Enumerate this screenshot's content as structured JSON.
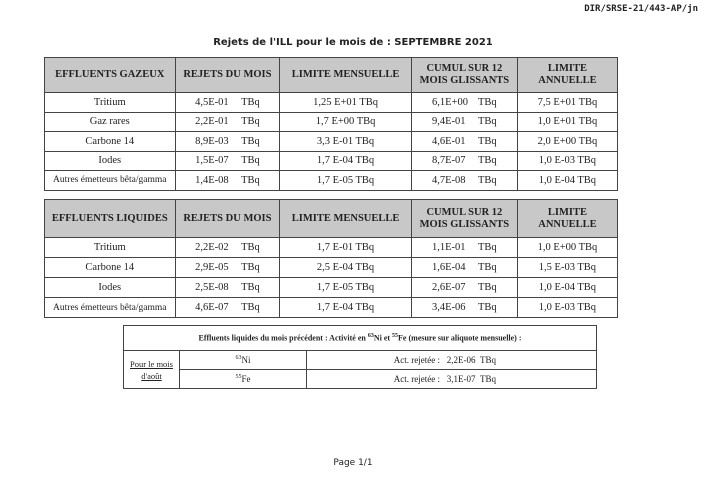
{
  "ref": "DIR/SRSE-21/443-AP/jn",
  "title": "Rejets de l'ILL pour le mois de : SEPTEMBRE 2021",
  "unit": "TBq",
  "gazeux": {
    "headers": [
      "EFFLUENTS GAZEUX",
      "REJETS DU MOIS",
      "LIMITE MENSUELLE",
      "CUMUL SUR 12 MOIS GLISSANTS",
      "LIMITE ANNUELLE"
    ],
    "rows": [
      {
        "name": "Tritium",
        "rejets": "4,5E-01",
        "limite_m": "1,25 E+01 TBq",
        "cumul": "6,1E+00",
        "limite_a": "7,5 E+01 TBq"
      },
      {
        "name": "Gaz rares",
        "rejets": "2,2E-01",
        "limite_m": "1,7 E+00 TBq",
        "cumul": "9,4E-01",
        "limite_a": "1,0 E+01 TBq"
      },
      {
        "name": "Carbone 14",
        "rejets": "8,9E-03",
        "limite_m": "3,3 E-01 TBq",
        "cumul": "4,6E-01",
        "limite_a": "2,0 E+00 TBq"
      },
      {
        "name": "Iodes",
        "rejets": "1,5E-07",
        "limite_m": "1,7 E-04 TBq",
        "cumul": "8,7E-07",
        "limite_a": "1,0 E-03 TBq"
      },
      {
        "name": "Autres émetteurs bêta/gamma",
        "rejets": "1,4E-08",
        "limite_m": "1,7 E-05 TBq",
        "cumul": "4,7E-08",
        "limite_a": "1,0 E-04 TBq"
      }
    ]
  },
  "liquides": {
    "headers": [
      "EFFLUENTS LIQUIDES",
      "REJETS DU MOIS",
      "LIMITE MENSUELLE",
      "CUMUL SUR 12 MOIS GLISSANTS",
      "LIMITE ANNUELLE"
    ],
    "rows": [
      {
        "name": "Tritium",
        "rejets": "2,2E-02",
        "limite_m": "1,7 E-01 TBq",
        "cumul": "1,1E-01",
        "limite_a": "1,0 E+00 TBq"
      },
      {
        "name": "Carbone 14",
        "rejets": "2,9E-05",
        "limite_m": "2,5 E-04 TBq",
        "cumul": "1,6E-04",
        "limite_a": "1,5 E-03 TBq"
      },
      {
        "name": "Iodes",
        "rejets": "2,5E-08",
        "limite_m": "1,7 E-05 TBq",
        "cumul": "2,6E-07",
        "limite_a": "1,0 E-04 TBq"
      },
      {
        "name": "Autres émetteurs bêta/gamma",
        "rejets": "4,6E-07",
        "limite_m": "1,7 E-04 TBq",
        "cumul": "3,4E-06",
        "limite_a": "1,0 E-03 TBq"
      }
    ]
  },
  "precedent": {
    "header_a": "Effluents liquides du mois précédent : Activité en ",
    "ni_mass": "63",
    "ni": "Ni",
    "et": " et ",
    "fe_mass": "55",
    "fe": "Fe",
    "header_b": " (mesure sur aliquote mensuelle) :",
    "period": "Pour le mois d'août",
    "label": "Act. rejetée :",
    "rows": [
      {
        "mass": "63",
        "el": "Ni",
        "value": "2,2E-06"
      },
      {
        "mass": "55",
        "el": "Fe",
        "value": "3,1E-07"
      }
    ]
  },
  "page": "Page 1/1"
}
